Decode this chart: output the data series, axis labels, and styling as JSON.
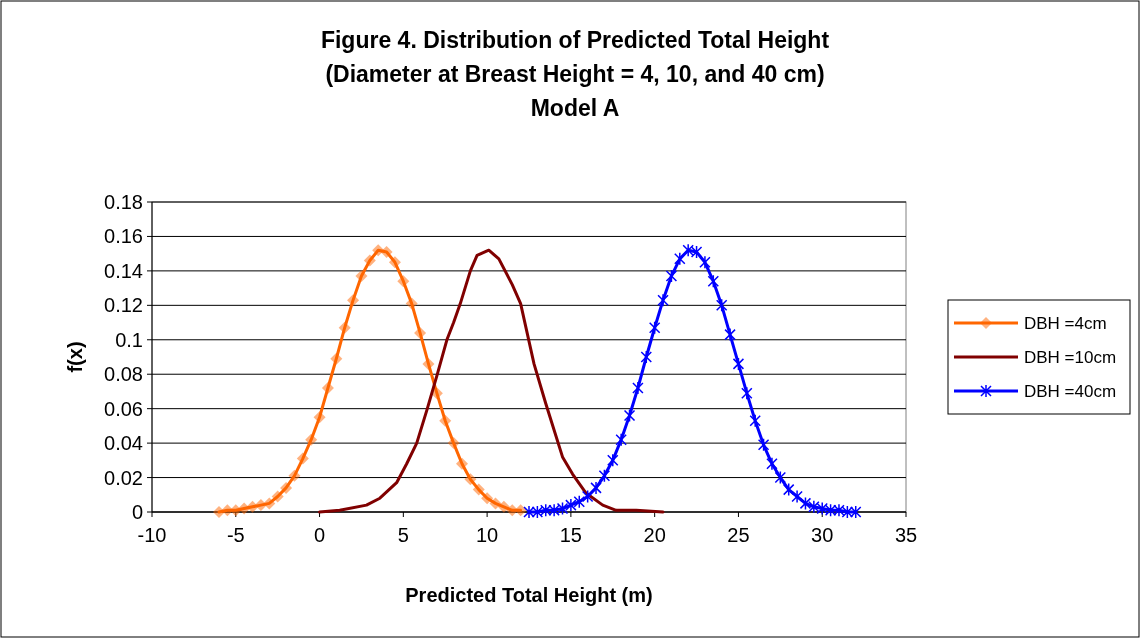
{
  "chart_data": {
    "type": "line",
    "title": "Figure 4. Distribution of Predicted Total Height\n(Diameter at Breast Height = 4, 10, and 40 cm)\nModel A",
    "xlabel": "Predicted Total Height (m)",
    "ylabel": "f(x)",
    "xlim": [
      -10,
      35
    ],
    "xticks": [
      -10,
      -5,
      0,
      5,
      10,
      15,
      20,
      25,
      30,
      35
    ],
    "ylim": [
      0,
      0.18
    ],
    "yticks": [
      0,
      0.02,
      0.04,
      0.06,
      0.08,
      0.1,
      0.12,
      0.14,
      0.16,
      0.18
    ],
    "grid": "y",
    "legend": "right",
    "series": [
      {
        "name": "DBH =4cm",
        "color": "#ff6600",
        "marker": "diamond",
        "x": [
          -6,
          -5.5,
          -5,
          -4.5,
          -4,
          -3.5,
          -3,
          -2.5,
          -2,
          -1.5,
          -1,
          -0.5,
          0,
          0.5,
          1,
          1.5,
          2,
          2.5,
          3,
          3.5,
          4,
          4.5,
          5,
          5.5,
          6,
          6.5,
          7,
          7.5,
          8,
          8.5,
          9,
          9.5,
          10,
          10.5,
          11,
          11.5,
          12
        ],
        "values": [
          0,
          0.001,
          0.001,
          0.002,
          0.003,
          0.004,
          0.005,
          0.009,
          0.014,
          0.021,
          0.031,
          0.042,
          0.055,
          0.072,
          0.089,
          0.107,
          0.123,
          0.137,
          0.146,
          0.152,
          0.151,
          0.145,
          0.134,
          0.121,
          0.104,
          0.086,
          0.069,
          0.053,
          0.04,
          0.028,
          0.019,
          0.013,
          0.008,
          0.005,
          0.003,
          0.001,
          0.001
        ]
      },
      {
        "name": "DBH =10cm",
        "color": "#800000",
        "marker": "none",
        "x": [
          0,
          1.2,
          2.8,
          3.6,
          4.6,
          5.2,
          5.8,
          6.4,
          7,
          7.6,
          8,
          8.4,
          9,
          9.4,
          10.1,
          10.7,
          11.5,
          12,
          12.8,
          13.5,
          14.5,
          15.1,
          15.9,
          16.9,
          17.7,
          18.9,
          20.5
        ],
        "values": [
          0,
          0.001,
          0.004,
          0.008,
          0.017,
          0.028,
          0.04,
          0.059,
          0.079,
          0.1,
          0.11,
          0.121,
          0.14,
          0.149,
          0.152,
          0.147,
          0.132,
          0.121,
          0.086,
          0.063,
          0.032,
          0.022,
          0.011,
          0.004,
          0.001,
          0.001,
          0
        ]
      },
      {
        "name": "DBH =40cm",
        "color": "#0000ff",
        "marker": "cross",
        "x": [
          12.5,
          13,
          13.5,
          14,
          14.5,
          15,
          15.5,
          16,
          16.5,
          17,
          17.5,
          18,
          18.5,
          19,
          19.5,
          20,
          20.5,
          21,
          21.5,
          22,
          22.5,
          23,
          23.5,
          24,
          24.5,
          25,
          25.5,
          26,
          26.5,
          27,
          27.5,
          28,
          28.5,
          29,
          29.5,
          30,
          30.5,
          31,
          31.5,
          32
        ],
        "values": [
          0,
          0,
          0.001,
          0.001,
          0.002,
          0.004,
          0.006,
          0.009,
          0.014,
          0.021,
          0.03,
          0.042,
          0.056,
          0.072,
          0.09,
          0.107,
          0.123,
          0.137,
          0.147,
          0.152,
          0.151,
          0.145,
          0.134,
          0.12,
          0.103,
          0.086,
          0.069,
          0.053,
          0.039,
          0.028,
          0.02,
          0.013,
          0.009,
          0.005,
          0.003,
          0.002,
          0.001,
          0.001,
          0,
          0
        ]
      }
    ]
  }
}
